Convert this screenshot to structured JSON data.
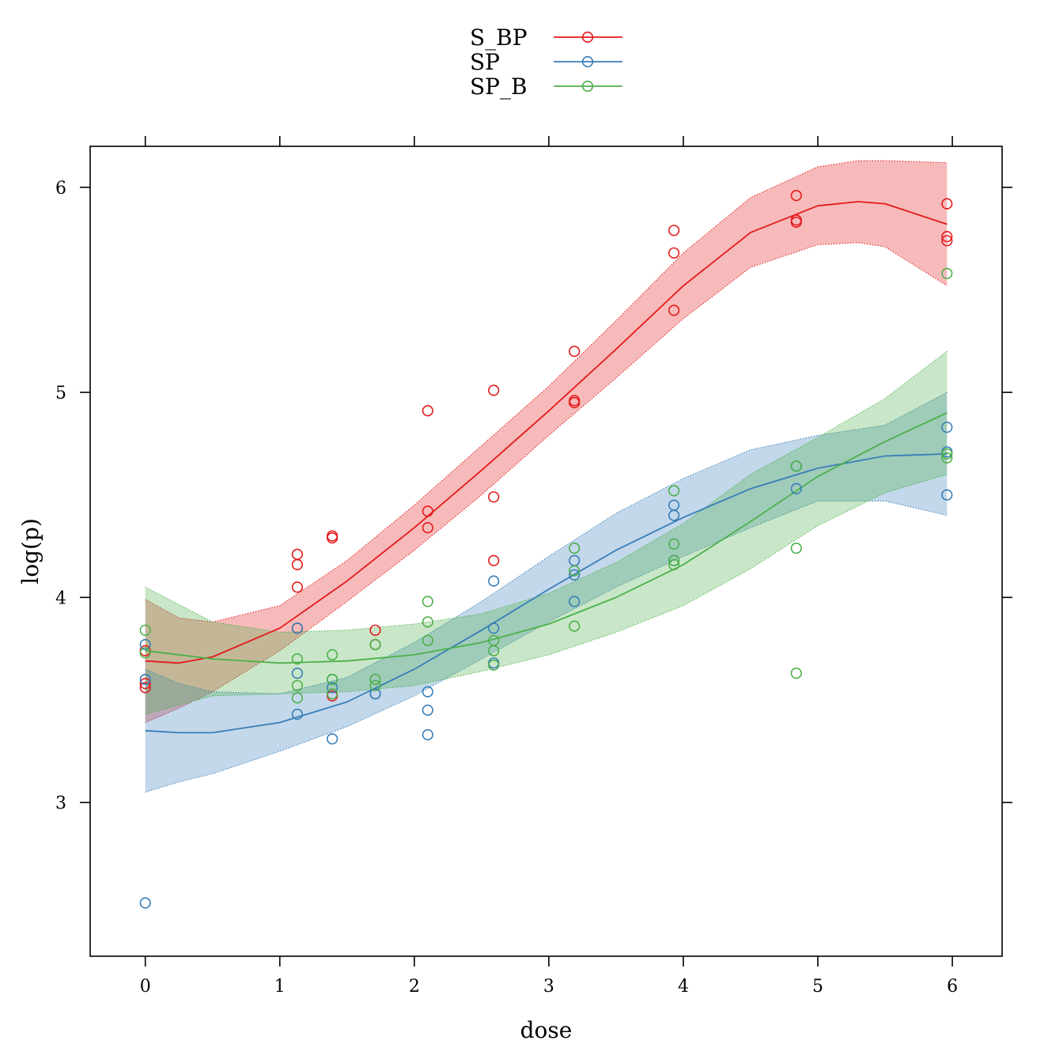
{
  "chart_data": {
    "type": "scatter",
    "title": "",
    "xlabel": "dose",
    "ylabel": "log(p)",
    "xlim": [
      -0.41,
      6.37
    ],
    "ylim": [
      2.25,
      6.2
    ],
    "xticks": [
      0,
      1,
      2,
      3,
      4,
      5,
      6
    ],
    "yticks": [
      3,
      4,
      5,
      6
    ],
    "grid": false,
    "legend": "top",
    "series": [
      {
        "name": "S_BP",
        "color": "#e41a1c",
        "points": [
          [
            0,
            3.56
          ],
          [
            0,
            3.58
          ],
          [
            0,
            3.74
          ],
          [
            1.13,
            4.21
          ],
          [
            1.13,
            4.16
          ],
          [
            1.13,
            4.05
          ],
          [
            1.13,
            3.85
          ],
          [
            1.39,
            4.3
          ],
          [
            1.39,
            4.29
          ],
          [
            1.39,
            3.52
          ],
          [
            1.71,
            3.84
          ],
          [
            1.71,
            3.77
          ],
          [
            2.1,
            4.91
          ],
          [
            2.1,
            4.42
          ],
          [
            2.1,
            4.34
          ],
          [
            2.59,
            5.01
          ],
          [
            2.59,
            4.49
          ],
          [
            2.59,
            4.18
          ],
          [
            3.19,
            5.2
          ],
          [
            3.19,
            4.96
          ],
          [
            3.19,
            4.95
          ],
          [
            3.93,
            5.79
          ],
          [
            3.93,
            5.68
          ],
          [
            3.93,
            5.4
          ],
          [
            4.84,
            5.96
          ],
          [
            4.84,
            5.84
          ],
          [
            4.84,
            5.83
          ],
          [
            5.96,
            5.92
          ],
          [
            5.96,
            5.76
          ],
          [
            5.96,
            5.74
          ]
        ],
        "fit": [
          [
            0,
            3.69
          ],
          [
            0.25,
            3.68
          ],
          [
            0.5,
            3.71
          ],
          [
            1,
            3.85
          ],
          [
            1.5,
            4.08
          ],
          [
            2,
            4.34
          ],
          [
            2.5,
            4.62
          ],
          [
            3,
            4.91
          ],
          [
            3.5,
            5.21
          ],
          [
            4,
            5.52
          ],
          [
            4.5,
            5.78
          ],
          [
            5,
            5.91
          ],
          [
            5.3,
            5.93
          ],
          [
            5.5,
            5.92
          ],
          [
            5.96,
            5.82
          ]
        ],
        "band_upper": [
          [
            0,
            3.99
          ],
          [
            0.25,
            3.9
          ],
          [
            0.5,
            3.88
          ],
          [
            1,
            3.96
          ],
          [
            1.5,
            4.18
          ],
          [
            2,
            4.45
          ],
          [
            2.5,
            4.74
          ],
          [
            3,
            5.03
          ],
          [
            3.5,
            5.35
          ],
          [
            4,
            5.68
          ],
          [
            4.5,
            5.95
          ],
          [
            5,
            6.1
          ],
          [
            5.3,
            6.13
          ],
          [
            5.5,
            6.13
          ],
          [
            5.96,
            6.12
          ]
        ],
        "band_lower": [
          [
            0,
            3.39
          ],
          [
            0.25,
            3.46
          ],
          [
            0.5,
            3.54
          ],
          [
            1,
            3.74
          ],
          [
            1.5,
            3.98
          ],
          [
            2,
            4.23
          ],
          [
            2.5,
            4.5
          ],
          [
            3,
            4.79
          ],
          [
            3.5,
            5.07
          ],
          [
            4,
            5.36
          ],
          [
            4.5,
            5.61
          ],
          [
            5,
            5.72
          ],
          [
            5.3,
            5.73
          ],
          [
            5.5,
            5.71
          ],
          [
            5.96,
            5.52
          ]
        ]
      },
      {
        "name": "SP",
        "color": "#377eb8",
        "points": [
          [
            0,
            3.6
          ],
          [
            0,
            3.77
          ],
          [
            0,
            2.51
          ],
          [
            1.13,
            3.85
          ],
          [
            1.13,
            3.63
          ],
          [
            1.13,
            3.43
          ],
          [
            1.39,
            3.6
          ],
          [
            1.39,
            3.56
          ],
          [
            1.39,
            3.31
          ],
          [
            1.71,
            3.53
          ],
          [
            1.71,
            3.53
          ],
          [
            2.1,
            3.54
          ],
          [
            2.1,
            3.45
          ],
          [
            2.1,
            3.33
          ],
          [
            2.59,
            4.08
          ],
          [
            2.59,
            3.85
          ],
          [
            2.59,
            3.68
          ],
          [
            3.19,
            4.18
          ],
          [
            3.19,
            4.11
          ],
          [
            3.19,
            3.98
          ],
          [
            3.93,
            4.45
          ],
          [
            3.93,
            4.4
          ],
          [
            3.93,
            4.18
          ],
          [
            4.84,
            4.64
          ],
          [
            4.84,
            4.53
          ],
          [
            5.96,
            4.83
          ],
          [
            5.96,
            4.71
          ],
          [
            5.96,
            4.5
          ]
        ],
        "fit": [
          [
            0,
            3.35
          ],
          [
            0.25,
            3.34
          ],
          [
            0.5,
            3.34
          ],
          [
            1,
            3.39
          ],
          [
            1.5,
            3.49
          ],
          [
            2,
            3.65
          ],
          [
            2.5,
            3.84
          ],
          [
            3,
            4.04
          ],
          [
            3.5,
            4.23
          ],
          [
            4,
            4.39
          ],
          [
            4.5,
            4.53
          ],
          [
            5,
            4.63
          ],
          [
            5.5,
            4.69
          ],
          [
            5.96,
            4.7
          ]
        ],
        "band_upper": [
          [
            0,
            3.65
          ],
          [
            0.25,
            3.58
          ],
          [
            0.5,
            3.54
          ],
          [
            1,
            3.53
          ],
          [
            1.5,
            3.61
          ],
          [
            2,
            3.78
          ],
          [
            2.5,
            3.98
          ],
          [
            3,
            4.2
          ],
          [
            3.5,
            4.41
          ],
          [
            4,
            4.58
          ],
          [
            4.5,
            4.72
          ],
          [
            5,
            4.79
          ],
          [
            5.5,
            4.84
          ],
          [
            5.96,
            5.0
          ]
        ],
        "band_lower": [
          [
            0,
            3.05
          ],
          [
            0.25,
            3.1
          ],
          [
            0.5,
            3.14
          ],
          [
            1,
            3.25
          ],
          [
            1.5,
            3.37
          ],
          [
            2,
            3.52
          ],
          [
            2.5,
            3.7
          ],
          [
            3,
            3.88
          ],
          [
            3.5,
            4.05
          ],
          [
            4,
            4.2
          ],
          [
            4.5,
            4.34
          ],
          [
            5,
            4.47
          ],
          [
            5.5,
            4.47
          ],
          [
            5.96,
            4.4
          ]
        ]
      },
      {
        "name": "SP_B",
        "color": "#4daf4a",
        "points": [
          [
            0,
            3.84
          ],
          [
            0,
            3.73
          ],
          [
            1.13,
            3.7
          ],
          [
            1.13,
            3.57
          ],
          [
            1.13,
            3.51
          ],
          [
            1.39,
            3.72
          ],
          [
            1.39,
            3.6
          ],
          [
            1.39,
            3.53
          ],
          [
            1.71,
            3.6
          ],
          [
            1.71,
            3.57
          ],
          [
            1.71,
            3.77
          ],
          [
            2.1,
            3.98
          ],
          [
            2.1,
            3.88
          ],
          [
            2.1,
            3.79
          ],
          [
            2.59,
            3.79
          ],
          [
            2.59,
            3.74
          ],
          [
            2.59,
            3.67
          ],
          [
            3.19,
            4.24
          ],
          [
            3.19,
            4.13
          ],
          [
            3.19,
            3.86
          ],
          [
            3.93,
            4.52
          ],
          [
            3.93,
            4.26
          ],
          [
            3.93,
            4.18
          ],
          [
            3.93,
            4.16
          ],
          [
            4.84,
            4.64
          ],
          [
            4.84,
            4.24
          ],
          [
            4.84,
            3.63
          ],
          [
            5.96,
            5.58
          ],
          [
            5.96,
            4.7
          ],
          [
            5.96,
            4.68
          ]
        ],
        "fit": [
          [
            0,
            3.74
          ],
          [
            0.5,
            3.7
          ],
          [
            1,
            3.68
          ],
          [
            1.5,
            3.69
          ],
          [
            2,
            3.72
          ],
          [
            2.5,
            3.78
          ],
          [
            3,
            3.87
          ],
          [
            3.5,
            4.0
          ],
          [
            4,
            4.16
          ],
          [
            4.5,
            4.37
          ],
          [
            5,
            4.59
          ],
          [
            5.5,
            4.76
          ],
          [
            5.96,
            4.9
          ]
        ],
        "band_upper": [
          [
            0,
            4.05
          ],
          [
            0.5,
            3.88
          ],
          [
            1,
            3.83
          ],
          [
            1.5,
            3.84
          ],
          [
            2,
            3.87
          ],
          [
            2.5,
            3.92
          ],
          [
            3,
            4.02
          ],
          [
            3.5,
            4.17
          ],
          [
            4,
            4.36
          ],
          [
            4.5,
            4.6
          ],
          [
            5,
            4.78
          ],
          [
            5.5,
            4.97
          ],
          [
            5.96,
            5.2
          ]
        ],
        "band_lower": [
          [
            0,
            3.43
          ],
          [
            0.5,
            3.52
          ],
          [
            1,
            3.53
          ],
          [
            1.5,
            3.54
          ],
          [
            2,
            3.57
          ],
          [
            2.5,
            3.64
          ],
          [
            3,
            3.72
          ],
          [
            3.5,
            3.83
          ],
          [
            4,
            3.96
          ],
          [
            4.5,
            4.14
          ],
          [
            5,
            4.35
          ],
          [
            5.5,
            4.51
          ],
          [
            5.96,
            4.6
          ]
        ]
      }
    ]
  }
}
